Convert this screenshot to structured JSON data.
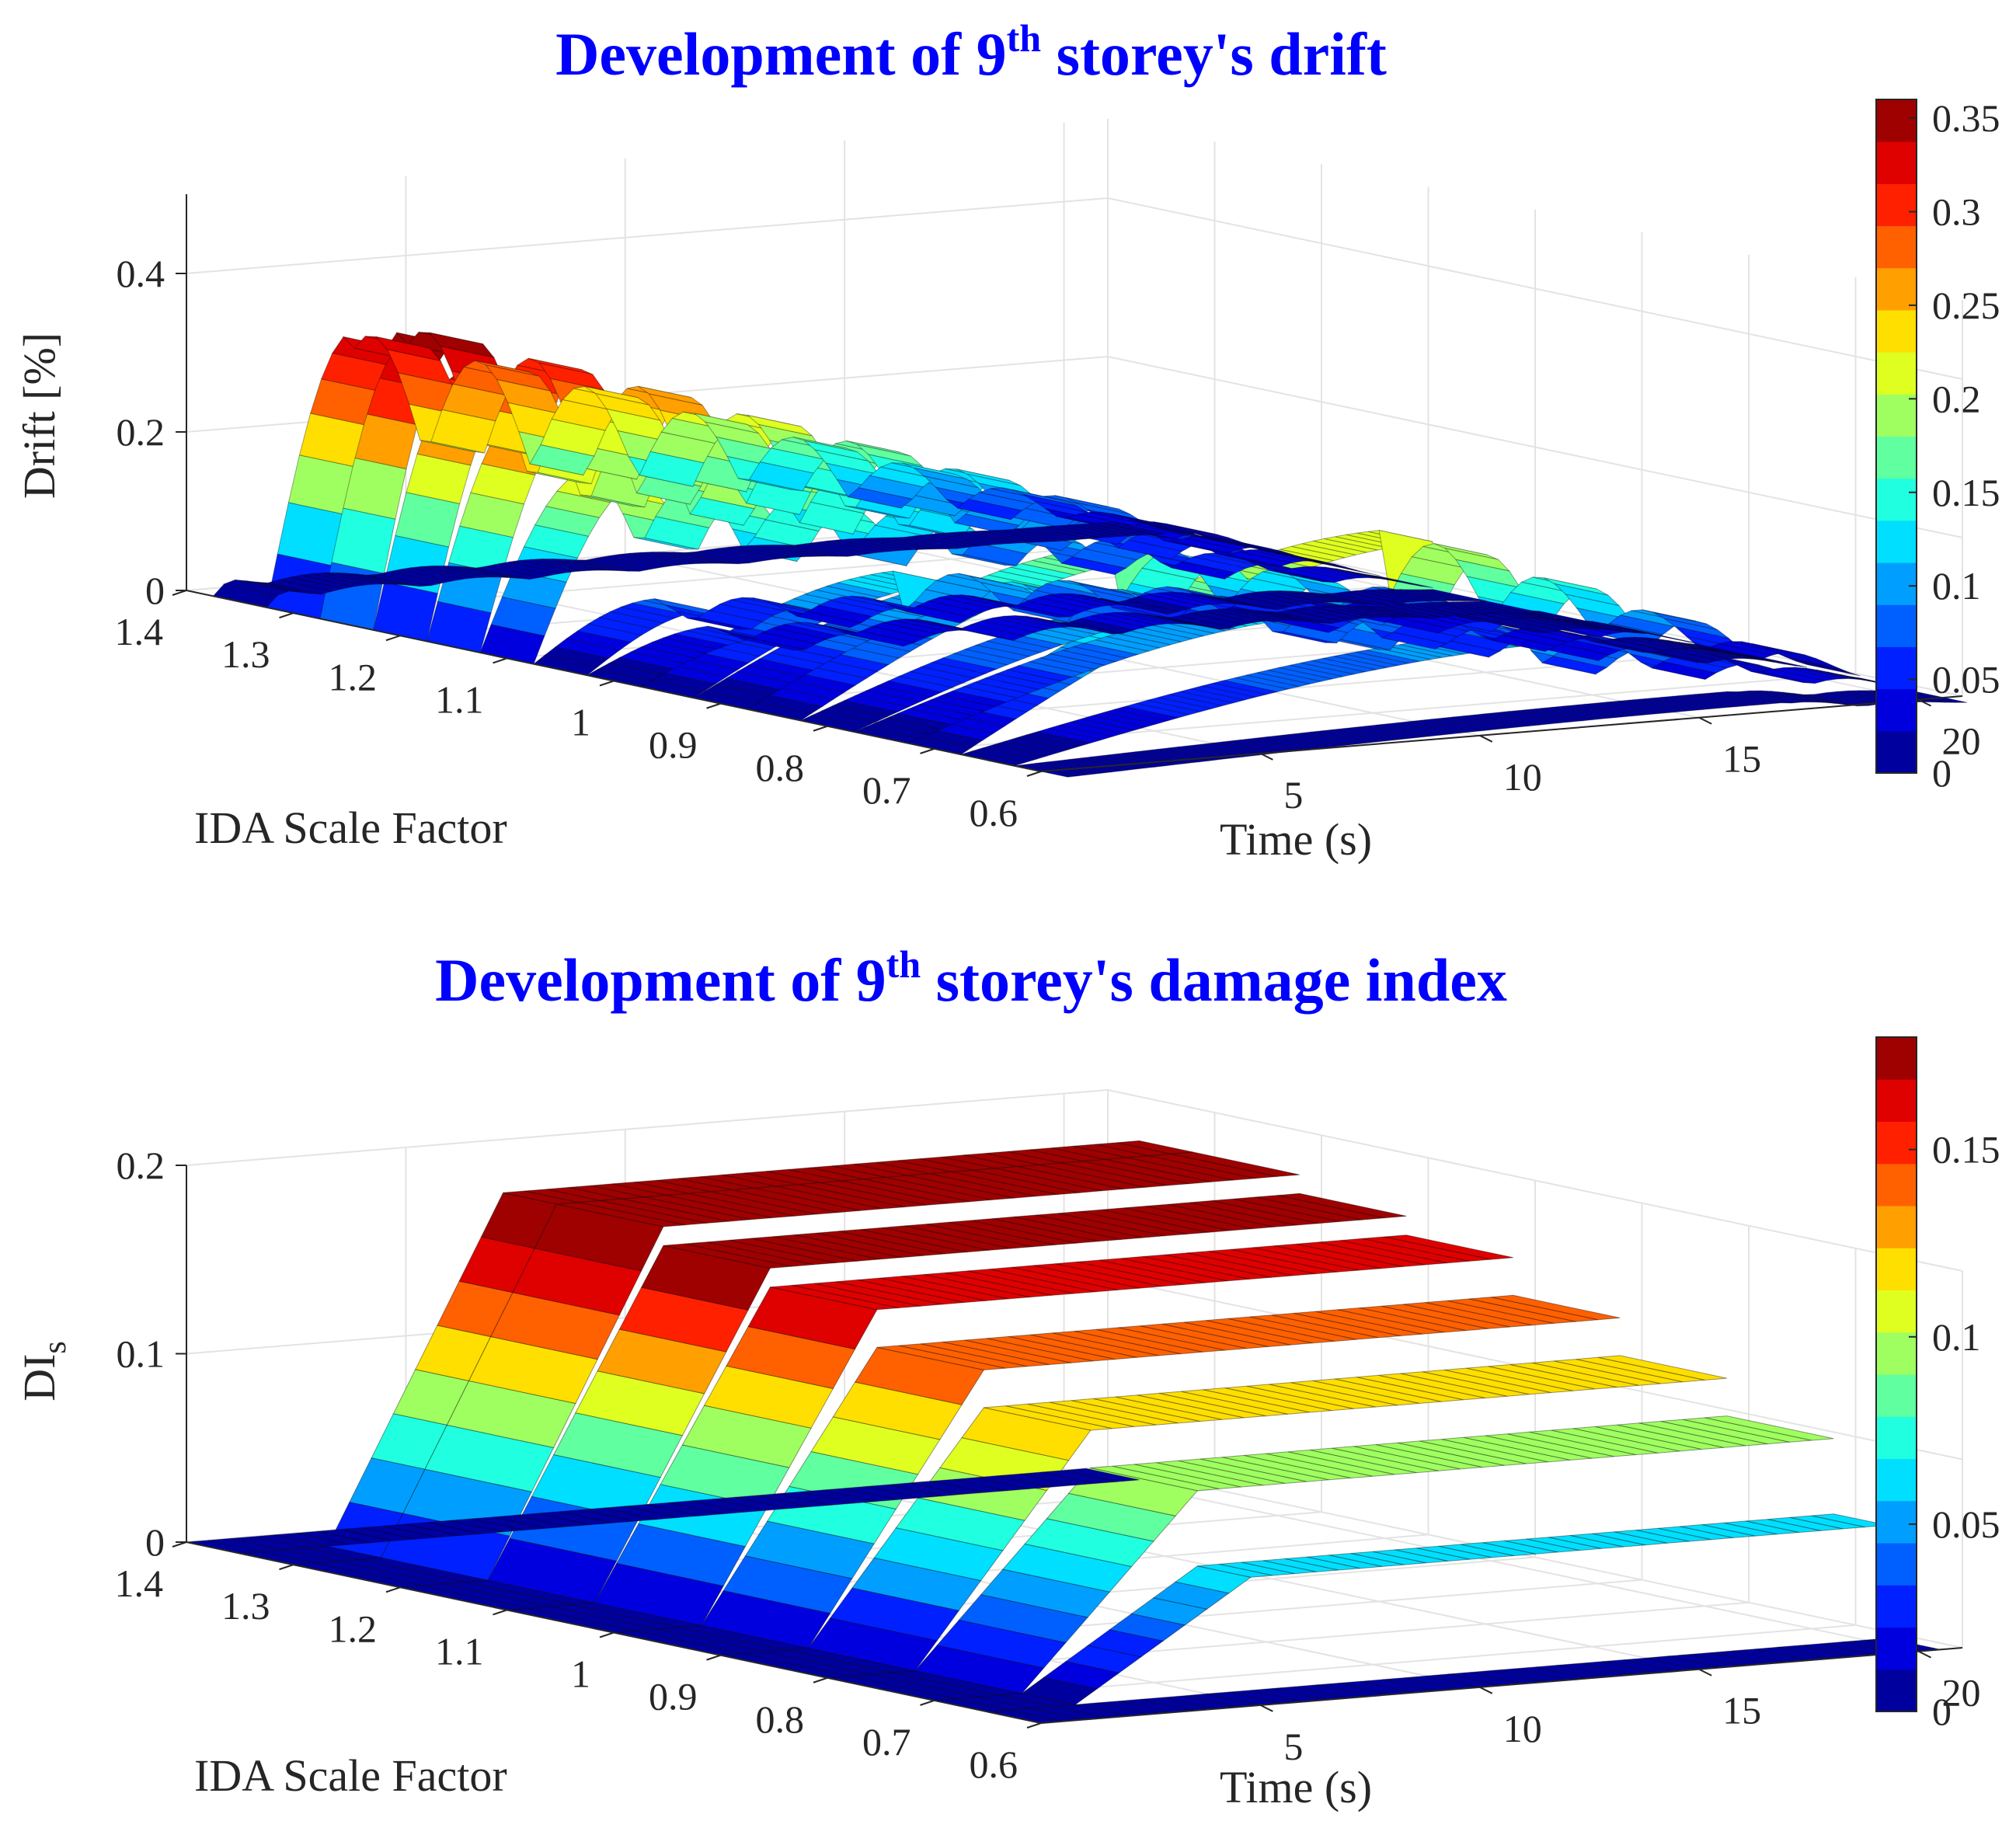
{
  "chart_data": [
    {
      "type": "surface",
      "title": "Development of 9th storey's drift",
      "title_parts": {
        "pre": "Development of 9",
        "sup": "th",
        "post": " storey's drift"
      },
      "xlabel": "IDA Scale Factor",
      "ylabel": "Time (s)",
      "zlabel": "Drift [%]",
      "x_ticks": [
        "1.4",
        "1.3",
        "1.2",
        "1.1",
        "1",
        "0.9",
        "0.8",
        "0.7",
        "0.6"
      ],
      "y_ticks": [
        "5",
        "10",
        "15",
        "20"
      ],
      "z_ticks": [
        "0",
        "0.2",
        "0.4"
      ],
      "xlim": [
        0.6,
        1.4
      ],
      "ylim": [
        0,
        21
      ],
      "zlim": [
        0,
        0.5
      ],
      "colormap": "jet",
      "colorbar": {
        "min": 0,
        "max": 0.36,
        "ticks": [
          "0",
          "0.05",
          "0.1",
          "0.15",
          "0.2",
          "0.25",
          "0.3",
          "0.35"
        ]
      },
      "scale_factors": [
        1.35,
        1.3,
        1.25,
        1.2,
        1.15,
        1.1,
        1.05,
        1.0,
        0.95,
        0.9,
        0.85,
        0.8,
        0.75,
        0.7,
        0.65,
        0.6
      ],
      "peak_drift": [
        0.02,
        0.34,
        0.36,
        0.32,
        0.29,
        0.22,
        0.07,
        0.05,
        0.12,
        0.12,
        0.17,
        0.12,
        0.12,
        0.22,
        0.1,
        0.02
      ],
      "peak_time_s": [
        0.5,
        2.0,
        2.0,
        2.1,
        2.3,
        2.5,
        2.8,
        3.0,
        6.0,
        6.5,
        8.5,
        9.0,
        10.0,
        11.0,
        13.0,
        16.5
      ]
    },
    {
      "type": "surface",
      "title": "Development of 9th storey's damage index",
      "title_parts": {
        "pre": "Development of 9",
        "sup": "th",
        "post": " storey's damage index"
      },
      "xlabel": "IDA Scale Factor",
      "ylabel": "Time (s)",
      "zlabel": "DI_s",
      "zlabel_parts": {
        "base": "DI",
        "sub": "s"
      },
      "x_ticks": [
        "1.4",
        "1.3",
        "1.2",
        "1.1",
        "1",
        "0.9",
        "0.8",
        "0.7",
        "0.6"
      ],
      "y_ticks": [
        "5",
        "10",
        "15",
        "20"
      ],
      "z_ticks": [
        "0",
        "0.1",
        "0.2"
      ],
      "xlim": [
        0.6,
        1.4
      ],
      "ylim": [
        0,
        21
      ],
      "zlim": [
        0,
        0.2
      ],
      "colormap": "jet",
      "colorbar": {
        "min": 0,
        "max": 0.18,
        "ticks": [
          "0",
          "0.05",
          "0.1",
          "0.15"
        ]
      },
      "onset_time_s": 2.0,
      "ramp_time_s": 6.0,
      "scale_factors": [
        1.35,
        1.3,
        1.2,
        1.1,
        1.0,
        0.9,
        0.8,
        0.7,
        0.65,
        0.6
      ],
      "final_DI": [
        0.0,
        0.18,
        0.18,
        0.17,
        0.16,
        0.14,
        0.12,
        0.1,
        0.06,
        0.0
      ]
    }
  ]
}
